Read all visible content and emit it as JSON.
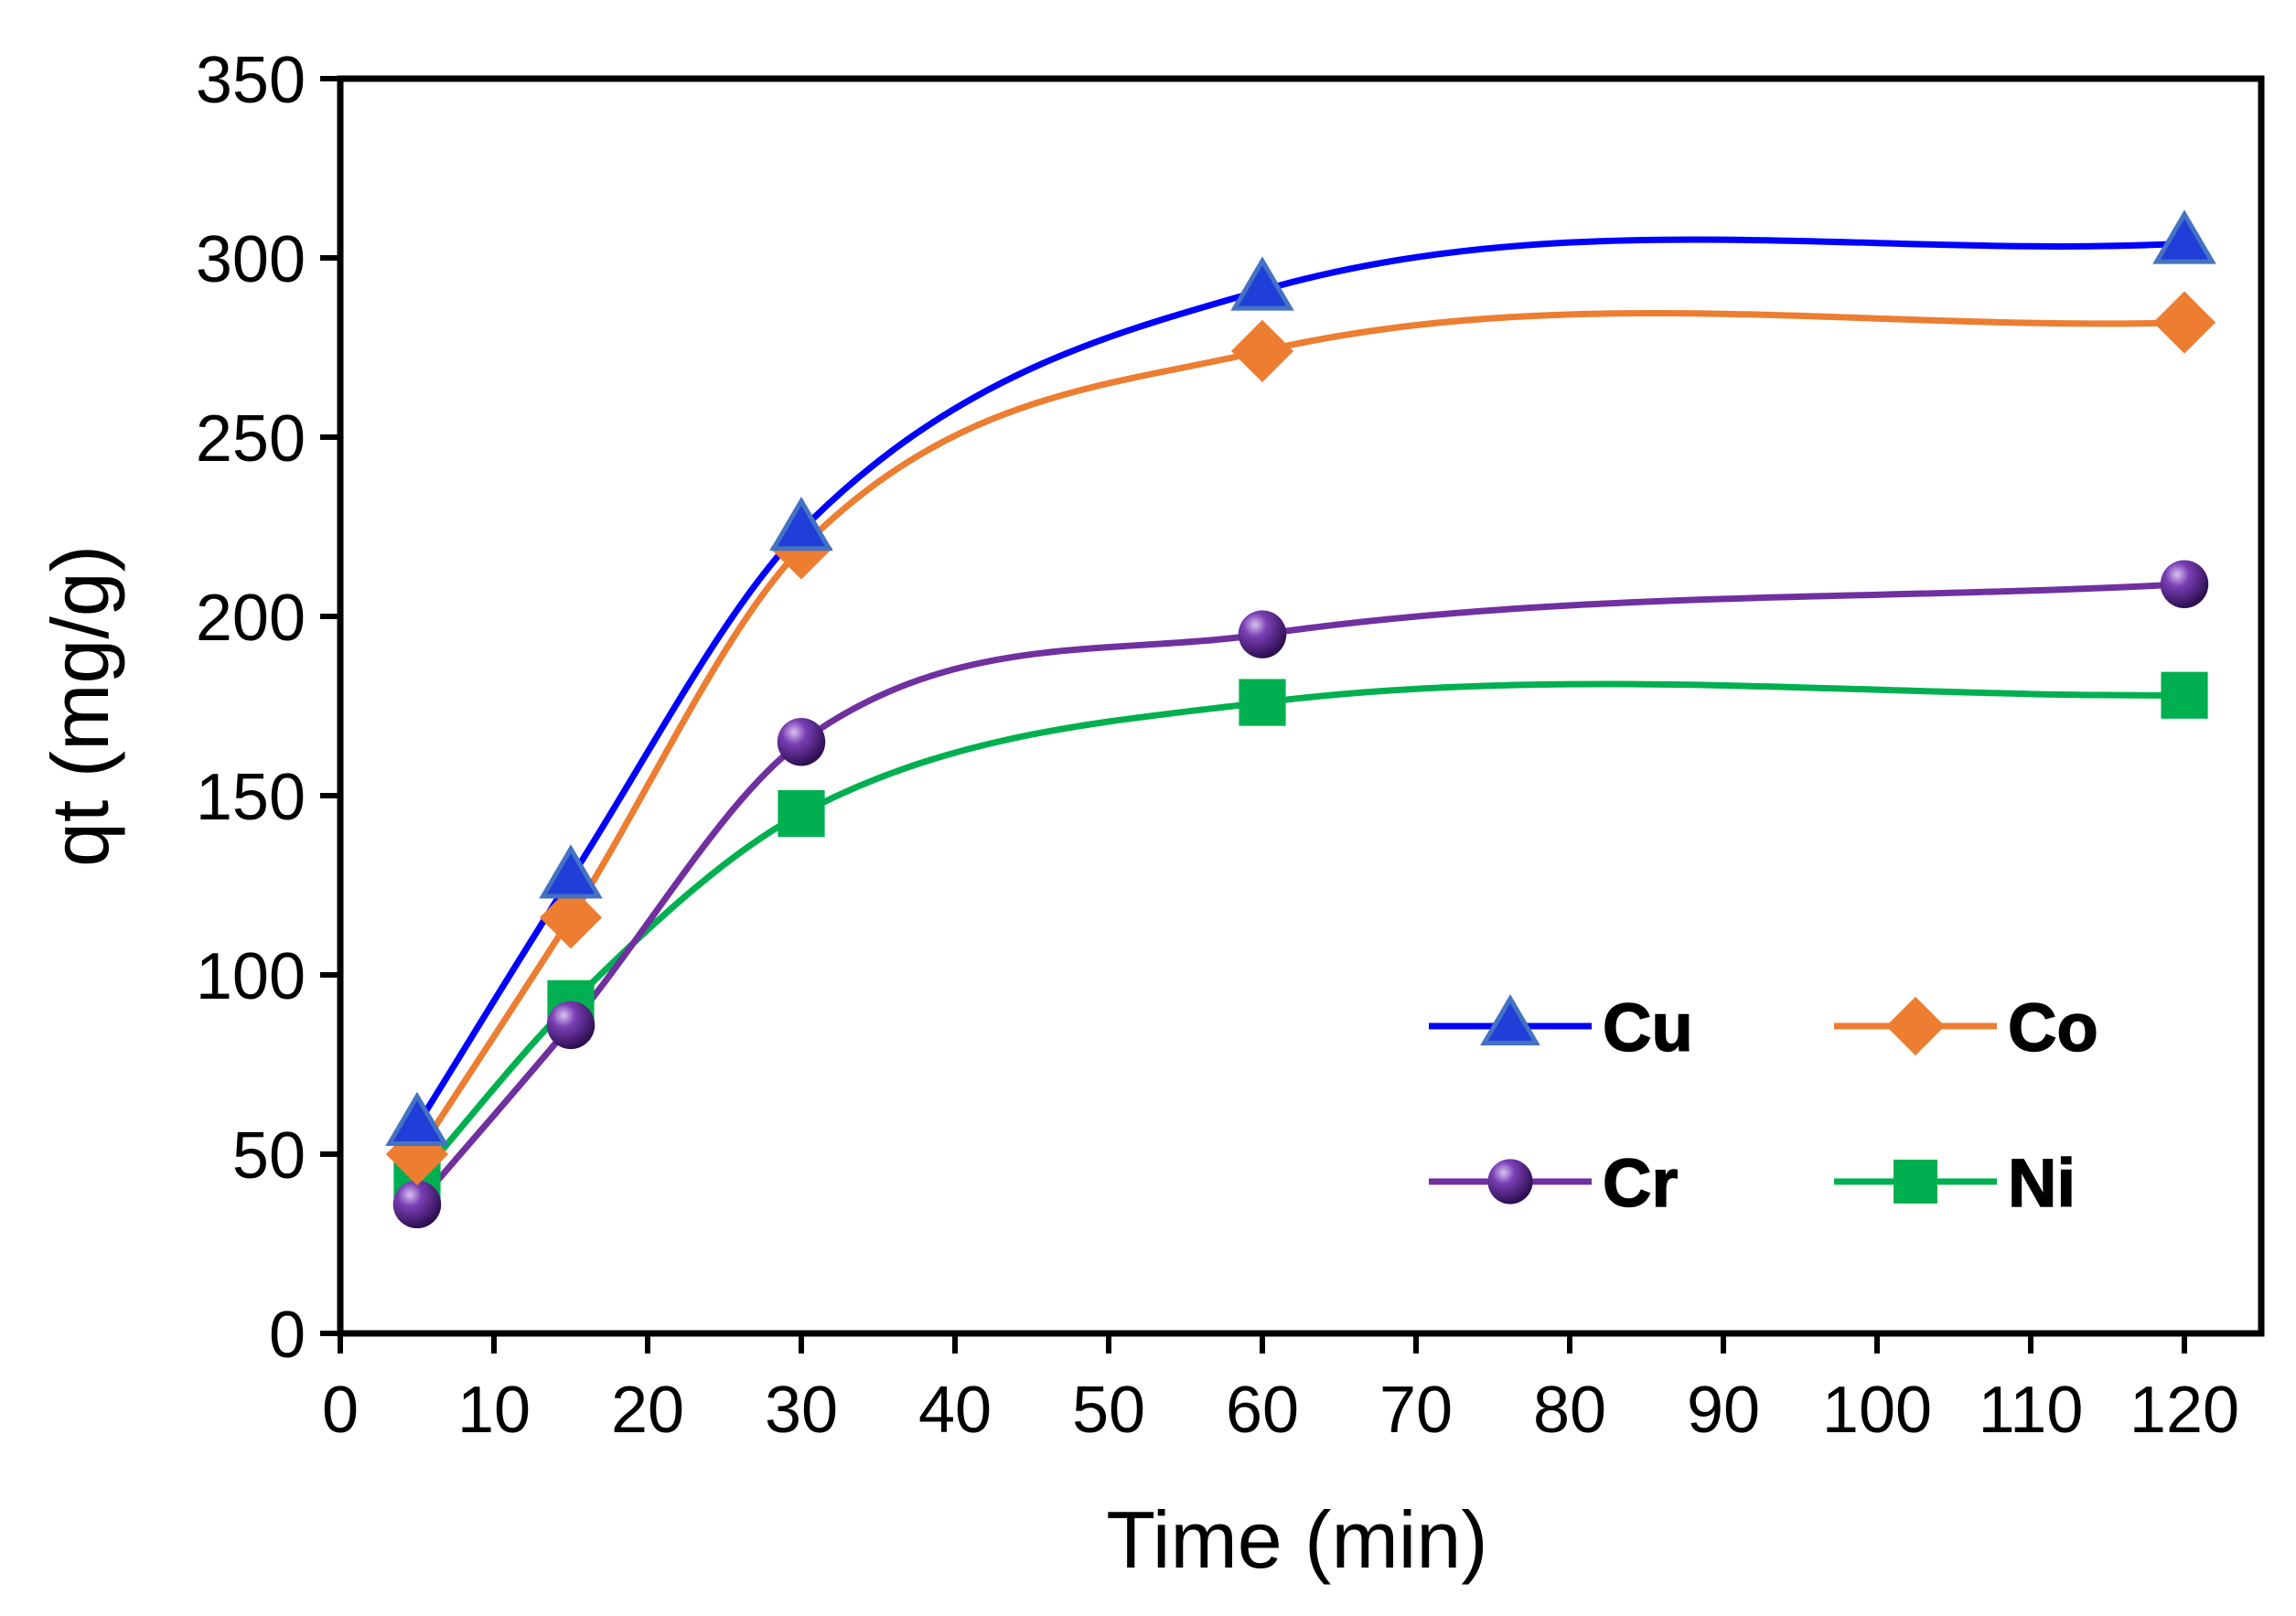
{
  "chart_data": {
    "type": "line",
    "title": "",
    "xlabel": "Time (min)",
    "ylabel": "qt (mg/g)",
    "xlim": [
      0,
      125
    ],
    "ylim": [
      0,
      350
    ],
    "xticks": [
      0,
      10,
      20,
      30,
      40,
      50,
      60,
      70,
      80,
      90,
      100,
      110,
      120
    ],
    "yticks": [
      0,
      50,
      100,
      150,
      200,
      250,
      300,
      350
    ],
    "x": [
      5,
      15,
      30,
      60,
      120
    ],
    "grid": false,
    "legend_position": "bottom-right",
    "series": [
      {
        "name": "Cu",
        "marker": "triangle",
        "color": "#0000FF",
        "marker_color": "#1F3FD8",
        "values": [
          58,
          127,
          224,
          291,
          304
        ]
      },
      {
        "name": "Co",
        "marker": "diamond",
        "color": "#ED7D31",
        "marker_color": "#ED7D31",
        "values": [
          50,
          116,
          219,
          274,
          282
        ]
      },
      {
        "name": "Cr",
        "marker": "circle",
        "color": "#7030A0",
        "marker_color": "#5B2A8C",
        "values": [
          36,
          86,
          165,
          195,
          209
        ]
      },
      {
        "name": "Ni",
        "marker": "square",
        "color": "#00B050",
        "marker_color": "#00B050",
        "values": [
          43,
          92,
          145,
          176,
          178
        ]
      }
    ]
  }
}
